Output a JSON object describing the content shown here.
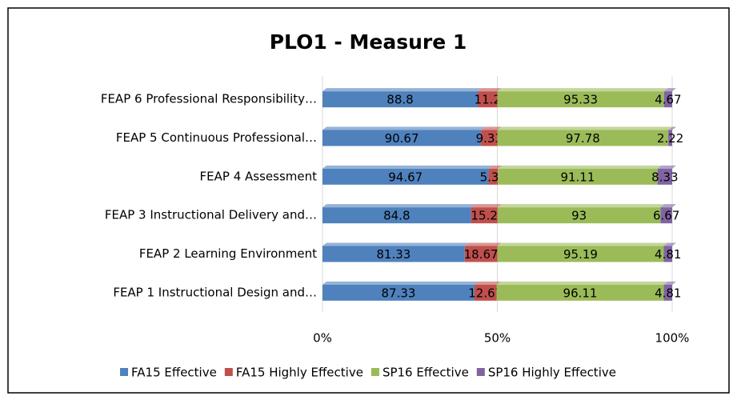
{
  "chart_data": {
    "type": "bar",
    "orientation": "horizontal",
    "stacked": "percent",
    "title": "PLO1 - Measure 1",
    "categories": [
      "FEAP 1 Instructional Design and…",
      "FEAP 2 Learning Environment",
      "FEAP 3 Instructional Delivery and…",
      "FEAP 4  Assessment",
      "FEAP 5 Continuous Professional…",
      "FEAP 6 Professional Responsibility…"
    ],
    "series": [
      {
        "name": "FA15 Effective",
        "color": "#4f81bd",
        "values": [
          87.33,
          81.33,
          84.8,
          94.67,
          90.67,
          88.8
        ]
      },
      {
        "name": "FA15 Highly Effective",
        "color": "#c0504d",
        "values": [
          12.67,
          18.67,
          15.2,
          5.33,
          9.33,
          11.2
        ]
      },
      {
        "name": "SP16 Effective",
        "color": "#9bbb59",
        "values": [
          96.11,
          95.19,
          93,
          91.11,
          97.78,
          95.33
        ]
      },
      {
        "name": "SP16 Highly Effective",
        "color": "#8064a2",
        "values": [
          4.81,
          4.81,
          6.67,
          8.33,
          2.22,
          4.67
        ]
      }
    ],
    "xlim": [
      0,
      100
    ],
    "xticks": [
      {
        "value": 0,
        "label": "0%"
      },
      {
        "value": 50,
        "label": "50%"
      },
      {
        "value": 100,
        "label": "100%"
      }
    ],
    "grid": true,
    "legend": "bottom"
  }
}
